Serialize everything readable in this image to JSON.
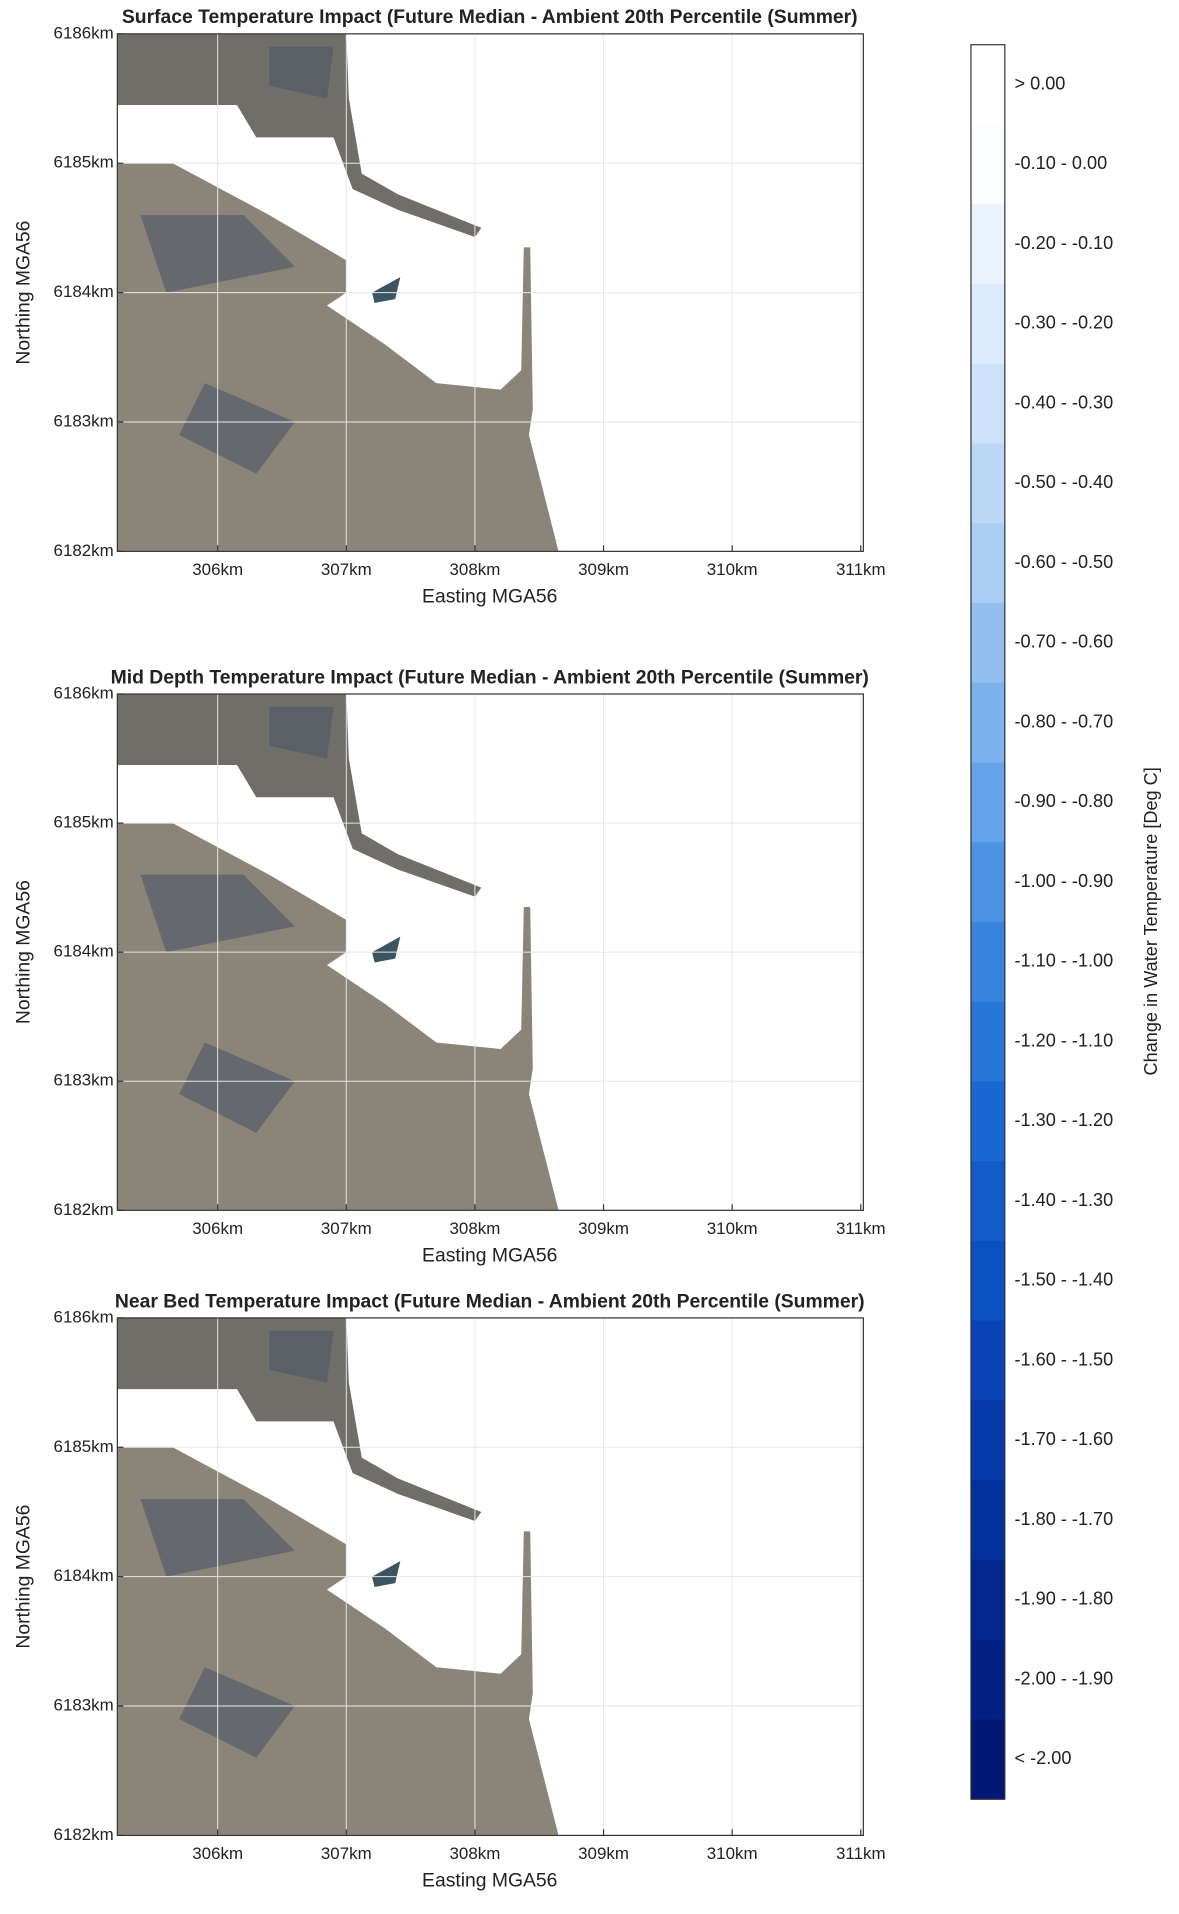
{
  "panels": [
    {
      "title": "Surface Temperature Impact (Future Median - Ambient 20th Percentile (Summer)",
      "xlabel": "Easting MGA56",
      "ylabel": "Northing MGA56",
      "xlim": [
        305.22,
        311.02
      ],
      "ylim": [
        6182,
        6186
      ],
      "xticks": [
        {
          "value": 306,
          "label": "306km"
        },
        {
          "value": 307,
          "label": "307km"
        },
        {
          "value": 308,
          "label": "308km"
        },
        {
          "value": 309,
          "label": "309km"
        },
        {
          "value": 310,
          "label": "310km"
        },
        {
          "value": 311,
          "label": "311km"
        }
      ],
      "yticks": [
        {
          "value": 6182,
          "label": "6182km"
        },
        {
          "value": 6183,
          "label": "6183km"
        },
        {
          "value": 6184,
          "label": "6184km"
        },
        {
          "value": 6185,
          "label": "6185km"
        },
        {
          "value": 6186,
          "label": "6186km"
        }
      ]
    },
    {
      "title": "Mid Depth Temperature Impact (Future Median - Ambient 20th Percentile (Summer)",
      "xlabel": "Easting MGA56",
      "ylabel": "Northing MGA56",
      "xlim": [
        305.22,
        311.02
      ],
      "ylim": [
        6182,
        6186
      ],
      "xticks": [
        {
          "value": 306,
          "label": "306km"
        },
        {
          "value": 307,
          "label": "307km"
        },
        {
          "value": 308,
          "label": "308km"
        },
        {
          "value": 309,
          "label": "309km"
        },
        {
          "value": 310,
          "label": "310km"
        },
        {
          "value": 311,
          "label": "311km"
        }
      ],
      "yticks": [
        {
          "value": 6182,
          "label": "6182km"
        },
        {
          "value": 6183,
          "label": "6183km"
        },
        {
          "value": 6184,
          "label": "6184km"
        },
        {
          "value": 6185,
          "label": "6185km"
        },
        {
          "value": 6186,
          "label": "6186km"
        }
      ]
    },
    {
      "title": "Near Bed Temperature Impact (Future Median - Ambient 20th Percentile (Summer)",
      "xlabel": "Easting MGA56",
      "ylabel": "Northing MGA56",
      "xlim": [
        305.22,
        311.02
      ],
      "ylim": [
        6182,
        6186
      ],
      "xticks": [
        {
          "value": 306,
          "label": "306km"
        },
        {
          "value": 307,
          "label": "307km"
        },
        {
          "value": 308,
          "label": "308km"
        },
        {
          "value": 309,
          "label": "309km"
        },
        {
          "value": 310,
          "label": "310km"
        },
        {
          "value": 311,
          "label": "311km"
        }
      ],
      "yticks": [
        {
          "value": 6182,
          "label": "6182km"
        },
        {
          "value": 6183,
          "label": "6183km"
        },
        {
          "value": 6184,
          "label": "6184km"
        },
        {
          "value": 6185,
          "label": "6185km"
        },
        {
          "value": 6186,
          "label": "6186km"
        }
      ]
    }
  ],
  "colorbar": {
    "label": "Change in Water Temperature [Deg C]",
    "classes": [
      {
        "label": "> 0.00",
        "color": "#ffffff"
      },
      {
        "label": "-0.10 - 0.00",
        "color": "#fbfdff"
      },
      {
        "label": "-0.20 - -0.10",
        "color": "#eaf3fd"
      },
      {
        "label": "-0.30 - -0.20",
        "color": "#dcebfb"
      },
      {
        "label": "-0.40 - -0.30",
        "color": "#cde2f9"
      },
      {
        "label": "-0.50 - -0.40",
        "color": "#bcd8f6"
      },
      {
        "label": "-0.60 - -0.50",
        "color": "#a9cdf3"
      },
      {
        "label": "-0.70 - -0.60",
        "color": "#94c0f0"
      },
      {
        "label": "-0.80 - -0.70",
        "color": "#7db2ec"
      },
      {
        "label": "-0.90 - -0.80",
        "color": "#65a3e8"
      },
      {
        "label": "-1.00 - -0.90",
        "color": "#4d93e3"
      },
      {
        "label": "-1.10 - -1.00",
        "color": "#3884de"
      },
      {
        "label": "-1.20 - -1.10",
        "color": "#2776d8"
      },
      {
        "label": "-1.30 - -1.20",
        "color": "#1a68d1"
      },
      {
        "label": "-1.40 - -1.30",
        "color": "#125bc9"
      },
      {
        "label": "-1.50 - -1.40",
        "color": "#0c4fc0"
      },
      {
        "label": "-1.60 - -1.50",
        "color": "#0844b5"
      },
      {
        "label": "-1.70 - -1.60",
        "color": "#063aa9"
      },
      {
        "label": "-1.80 - -1.70",
        "color": "#04309c"
      },
      {
        "label": "-1.90 - -1.80",
        "color": "#03278f"
      },
      {
        "label": "-2.00 - -1.90",
        "color": "#021f82"
      },
      {
        "label": "< -2.00",
        "color": "#011874"
      }
    ]
  }
}
